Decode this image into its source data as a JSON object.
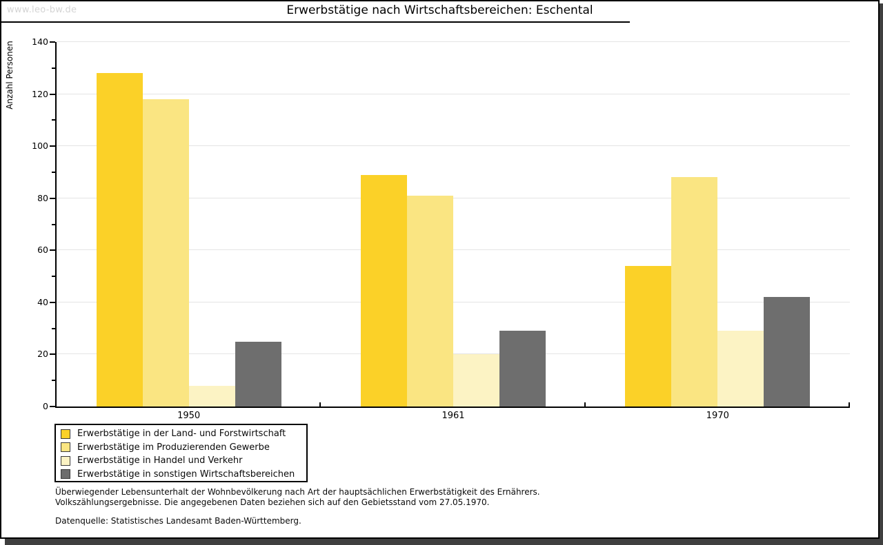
{
  "page": {
    "watermark": "www.leo-bw.de"
  },
  "chart_data": {
    "type": "bar",
    "title": "Erwerbstätige nach Wirtschaftsbereichen: Eschental",
    "ylabel": "Anzahl Personen",
    "xlabel": "",
    "ylim": [
      0,
      140
    ],
    "ytick_major_step": 20,
    "ytick_minor_step": 10,
    "grid": "horizontal-major",
    "legend_position": "bottom-left",
    "categories": [
      "1950",
      "1961",
      "1970"
    ],
    "series": [
      {
        "name": "Erwerbstätige in der Land- und Forstwirtschaft",
        "color": "#FBD128",
        "values": [
          128,
          89,
          54
        ]
      },
      {
        "name": "Erwerbstätige im Produzierenden Gewerbe",
        "color": "#FAE582",
        "values": [
          118,
          81,
          88
        ]
      },
      {
        "name": "Erwerbstätige in Handel und Verkehr",
        "color": "#FCF3C4",
        "values": [
          8,
          20,
          29
        ]
      },
      {
        "name": "Erwerbstätige in sonstigen Wirtschaftsbereichen",
        "color": "#6E6E6E",
        "values": [
          25,
          29,
          42
        ]
      }
    ]
  },
  "footer": {
    "line1": "Überwiegender Lebensunterhalt der Wohnbevölkerung nach Art der hauptsächlichen Erwerbstätigkeit des Ernährers.",
    "line2": "Volkszählungsergebnisse. Die angegebenen Daten beziehen sich auf den Gebietsstand vom 27.05.1970.",
    "source": "Datenquelle: Statistisches Landesamt Baden-Württemberg."
  }
}
